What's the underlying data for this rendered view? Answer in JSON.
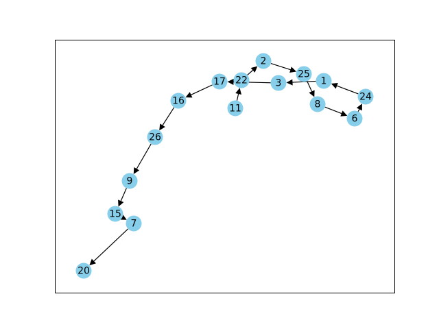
{
  "graph": {
    "node_color": "#87ceeb",
    "edge_color": "#000000",
    "frame_color": "#000000",
    "nodes": [
      {
        "id": "1",
        "label": "1"
      },
      {
        "id": "2",
        "label": "2"
      },
      {
        "id": "3",
        "label": "3"
      },
      {
        "id": "6",
        "label": "6"
      },
      {
        "id": "7",
        "label": "7"
      },
      {
        "id": "8",
        "label": "8"
      },
      {
        "id": "9",
        "label": "9"
      },
      {
        "id": "11",
        "label": "11"
      },
      {
        "id": "15",
        "label": "15"
      },
      {
        "id": "16",
        "label": "16"
      },
      {
        "id": "17",
        "label": "17"
      },
      {
        "id": "20",
        "label": "20"
      },
      {
        "id": "22",
        "label": "22"
      },
      {
        "id": "24",
        "label": "24"
      },
      {
        "id": "25",
        "label": "25"
      },
      {
        "id": "26",
        "label": "26"
      }
    ],
    "edges": [
      {
        "from": "2",
        "to": "25"
      },
      {
        "from": "25",
        "to": "8"
      },
      {
        "from": "8",
        "to": "6"
      },
      {
        "from": "6",
        "to": "24"
      },
      {
        "from": "24",
        "to": "1"
      },
      {
        "from": "1",
        "to": "3"
      },
      {
        "from": "3",
        "to": "17"
      },
      {
        "from": "11",
        "to": "22"
      },
      {
        "from": "22",
        "to": "2"
      },
      {
        "from": "17",
        "to": "16"
      },
      {
        "from": "16",
        "to": "26"
      },
      {
        "from": "26",
        "to": "9"
      },
      {
        "from": "9",
        "to": "15"
      },
      {
        "from": "15",
        "to": "7"
      },
      {
        "from": "7",
        "to": "20"
      }
    ]
  }
}
